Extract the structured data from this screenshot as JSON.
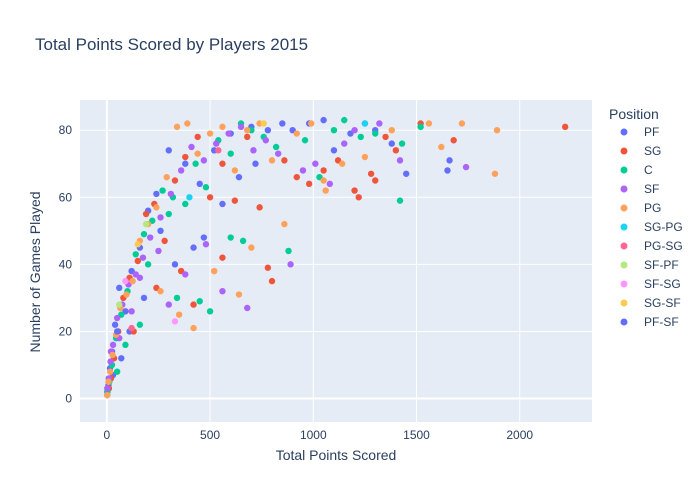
{
  "chart_data": {
    "type": "scatter",
    "title": "Total Points Scored by Players 2015",
    "xlabel": "Total Points Scored",
    "ylabel": "Number of Games Played",
    "xlim": [
      -130,
      2350
    ],
    "ylim": [
      -7,
      89
    ],
    "x_ticks": [
      0,
      500,
      1000,
      1500,
      2000
    ],
    "y_ticks": [
      0,
      20,
      40,
      60,
      80
    ],
    "grid": true,
    "legend_title": "Position",
    "legend_position": "right",
    "series": [
      {
        "name": "PF",
        "color": "#636efa",
        "points": [
          [
            2,
            2
          ],
          [
            8,
            4
          ],
          [
            15,
            9
          ],
          [
            25,
            14
          ],
          [
            40,
            22
          ],
          [
            60,
            33
          ],
          [
            90,
            26
          ],
          [
            120,
            38
          ],
          [
            160,
            45
          ],
          [
            200,
            56
          ],
          [
            240,
            61
          ],
          [
            300,
            74
          ],
          [
            380,
            70
          ],
          [
            450,
            64
          ],
          [
            520,
            74
          ],
          [
            600,
            79
          ],
          [
            700,
            81
          ],
          [
            780,
            80
          ],
          [
            850,
            82
          ],
          [
            900,
            80
          ],
          [
            980,
            82
          ],
          [
            1050,
            83
          ],
          [
            1100,
            74
          ],
          [
            1180,
            79
          ],
          [
            1250,
            82
          ],
          [
            1300,
            80
          ],
          [
            1380,
            76
          ],
          [
            1450,
            67
          ],
          [
            1650,
            68
          ],
          [
            1660,
            71
          ],
          [
            640,
            66
          ],
          [
            420,
            45
          ],
          [
            330,
            40
          ],
          [
            180,
            30
          ],
          [
            110,
            20
          ],
          [
            70,
            12
          ],
          [
            30,
            7
          ],
          [
            260,
            50
          ],
          [
            560,
            58
          ],
          [
            720,
            70
          ]
        ]
      },
      {
        "name": "SG",
        "color": "#ef553b",
        "points": [
          [
            2,
            1
          ],
          [
            10,
            3
          ],
          [
            20,
            6
          ],
          [
            35,
            12
          ],
          [
            55,
            20
          ],
          [
            80,
            30
          ],
          [
            110,
            36
          ],
          [
            150,
            41
          ],
          [
            190,
            55
          ],
          [
            230,
            58
          ],
          [
            280,
            47
          ],
          [
            330,
            65
          ],
          [
            380,
            72
          ],
          [
            440,
            78
          ],
          [
            500,
            60
          ],
          [
            560,
            70
          ],
          [
            620,
            59
          ],
          [
            680,
            78
          ],
          [
            740,
            57
          ],
          [
            800,
            35
          ],
          [
            860,
            71
          ],
          [
            920,
            66
          ],
          [
            980,
            64
          ],
          [
            1050,
            68
          ],
          [
            1120,
            71
          ],
          [
            1200,
            62
          ],
          [
            1280,
            67
          ],
          [
            1350,
            78
          ],
          [
            1400,
            74
          ],
          [
            1520,
            82
          ],
          [
            1680,
            77
          ],
          [
            2220,
            81
          ],
          [
            1300,
            65
          ],
          [
            1220,
            60
          ],
          [
            780,
            39
          ],
          [
            560,
            42
          ],
          [
            420,
            28
          ],
          [
            360,
            38
          ],
          [
            240,
            33
          ],
          [
            130,
            20
          ]
        ]
      },
      {
        "name": "C",
        "color": "#00cc96",
        "points": [
          [
            3,
            2
          ],
          [
            12,
            5
          ],
          [
            25,
            10
          ],
          [
            45,
            18
          ],
          [
            70,
            25
          ],
          [
            100,
            32
          ],
          [
            140,
            43
          ],
          [
            180,
            49
          ],
          [
            220,
            53
          ],
          [
            270,
            62
          ],
          [
            320,
            60
          ],
          [
            380,
            58
          ],
          [
            430,
            70
          ],
          [
            480,
            63
          ],
          [
            540,
            77
          ],
          [
            600,
            73
          ],
          [
            650,
            82
          ],
          [
            700,
            80
          ],
          [
            760,
            78
          ],
          [
            820,
            75
          ],
          [
            880,
            44
          ],
          [
            960,
            77
          ],
          [
            1030,
            66
          ],
          [
            1100,
            80
          ],
          [
            1150,
            83
          ],
          [
            1230,
            78
          ],
          [
            1300,
            79
          ],
          [
            1420,
            59
          ],
          [
            1430,
            76
          ],
          [
            1520,
            81
          ],
          [
            660,
            47
          ],
          [
            500,
            26
          ],
          [
            450,
            29
          ],
          [
            340,
            30
          ],
          [
            200,
            40
          ],
          [
            160,
            22
          ],
          [
            90,
            16
          ],
          [
            50,
            8
          ],
          [
            300,
            55
          ],
          [
            600,
            48
          ]
        ]
      },
      {
        "name": "SF",
        "color": "#ab63fa",
        "points": [
          [
            2,
            3
          ],
          [
            9,
            6
          ],
          [
            18,
            11
          ],
          [
            30,
            16
          ],
          [
            50,
            24
          ],
          [
            75,
            28
          ],
          [
            105,
            34
          ],
          [
            140,
            37
          ],
          [
            175,
            42
          ],
          [
            210,
            48
          ],
          [
            260,
            54
          ],
          [
            310,
            61
          ],
          [
            360,
            68
          ],
          [
            410,
            75
          ],
          [
            470,
            71
          ],
          [
            530,
            76
          ],
          [
            590,
            79
          ],
          [
            650,
            81
          ],
          [
            710,
            74
          ],
          [
            770,
            77
          ],
          [
            830,
            73
          ],
          [
            890,
            40
          ],
          [
            950,
            68
          ],
          [
            1010,
            70
          ],
          [
            1080,
            64
          ],
          [
            1150,
            76
          ],
          [
            1200,
            80
          ],
          [
            1320,
            82
          ],
          [
            1420,
            71
          ],
          [
            1740,
            69
          ],
          [
            680,
            27
          ],
          [
            560,
            32
          ],
          [
            480,
            46
          ],
          [
            380,
            37
          ],
          [
            300,
            28
          ],
          [
            250,
            44
          ],
          [
            160,
            36
          ],
          [
            120,
            26
          ],
          [
            60,
            18
          ],
          [
            20,
            14
          ]
        ]
      },
      {
        "name": "PG",
        "color": "#ffa15a",
        "points": [
          [
            2,
            1
          ],
          [
            8,
            5
          ],
          [
            16,
            8
          ],
          [
            28,
            13
          ],
          [
            45,
            19
          ],
          [
            65,
            27
          ],
          [
            95,
            31
          ],
          [
            125,
            35
          ],
          [
            160,
            47
          ],
          [
            200,
            52
          ],
          [
            240,
            57
          ],
          [
            290,
            66
          ],
          [
            340,
            81
          ],
          [
            390,
            82
          ],
          [
            440,
            73
          ],
          [
            500,
            79
          ],
          [
            560,
            81
          ],
          [
            620,
            68
          ],
          [
            680,
            80
          ],
          [
            740,
            82
          ],
          [
            800,
            71
          ],
          [
            860,
            52
          ],
          [
            920,
            79
          ],
          [
            990,
            82
          ],
          [
            1060,
            62
          ],
          [
            1140,
            70
          ],
          [
            1250,
            72
          ],
          [
            1380,
            80
          ],
          [
            1560,
            82
          ],
          [
            1720,
            82
          ],
          [
            1890,
            80
          ],
          [
            1880,
            67
          ],
          [
            1620,
            75
          ],
          [
            1050,
            65
          ],
          [
            700,
            45
          ],
          [
            640,
            31
          ],
          [
            520,
            38
          ],
          [
            420,
            21
          ],
          [
            350,
            25
          ],
          [
            260,
            32
          ]
        ]
      },
      {
        "name": "SG-PG",
        "color": "#19d3f3",
        "points": [
          [
            400,
            60
          ],
          [
            1250,
            82
          ]
        ]
      },
      {
        "name": "PG-SG",
        "color": "#ff6692",
        "points": [
          [
            120,
            21
          ],
          [
            540,
            74
          ]
        ]
      },
      {
        "name": "SF-PF",
        "color": "#b6e880",
        "points": [
          [
            60,
            28
          ],
          [
            190,
            52
          ]
        ]
      },
      {
        "name": "SF-SG",
        "color": "#ff97ff",
        "points": [
          [
            90,
            35
          ],
          [
            330,
            23
          ]
        ]
      },
      {
        "name": "SG-SF",
        "color": "#fecb52",
        "points": [
          [
            150,
            46
          ],
          [
            760,
            82
          ]
        ]
      },
      {
        "name": "PF-SF",
        "color": "#636efa",
        "points": [
          [
            50,
            20
          ],
          [
            470,
            48
          ]
        ]
      }
    ]
  }
}
